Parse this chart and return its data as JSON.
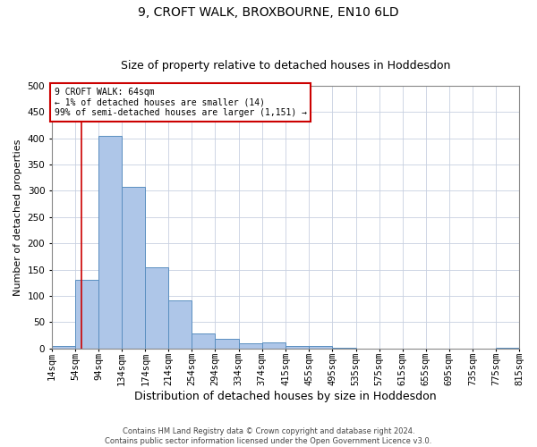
{
  "title1": "9, CROFT WALK, BROXBOURNE, EN10 6LD",
  "title2": "Size of property relative to detached houses in Hoddesdon",
  "xlabel": "Distribution of detached houses by size in Hoddesdon",
  "ylabel": "Number of detached properties",
  "footer1": "Contains HM Land Registry data © Crown copyright and database right 2024.",
  "footer2": "Contains public sector information licensed under the Open Government Licence v3.0.",
  "bins": [
    14,
    54,
    94,
    134,
    174,
    214,
    254,
    294,
    334,
    374,
    415,
    455,
    495,
    535,
    575,
    615,
    655,
    695,
    735,
    775,
    815
  ],
  "bar_values": [
    5,
    130,
    405,
    308,
    155,
    91,
    28,
    19,
    9,
    11,
    5,
    5,
    2,
    0,
    0,
    0,
    0,
    0,
    0,
    2
  ],
  "bar_color": "#aec6e8",
  "bar_edge_color": "#5a8fc0",
  "annotation_text": "9 CROFT WALK: 64sqm\n← 1% of detached houses are smaller (14)\n99% of semi-detached houses are larger (1,151) →",
  "annotation_box_color": "#ffffff",
  "annotation_box_edge": "#cc0000",
  "vline_x": 64,
  "vline_color": "#cc0000",
  "ylim": [
    0,
    500
  ],
  "yticks": [
    0,
    50,
    100,
    150,
    200,
    250,
    300,
    350,
    400,
    450,
    500
  ],
  "bg_color": "#ffffff",
  "grid_color": "#c8d0e0",
  "title1_fontsize": 10,
  "title2_fontsize": 9,
  "xlabel_fontsize": 9,
  "ylabel_fontsize": 8,
  "tick_fontsize": 7.5,
  "annot_fontsize": 7,
  "footer_fontsize": 6
}
